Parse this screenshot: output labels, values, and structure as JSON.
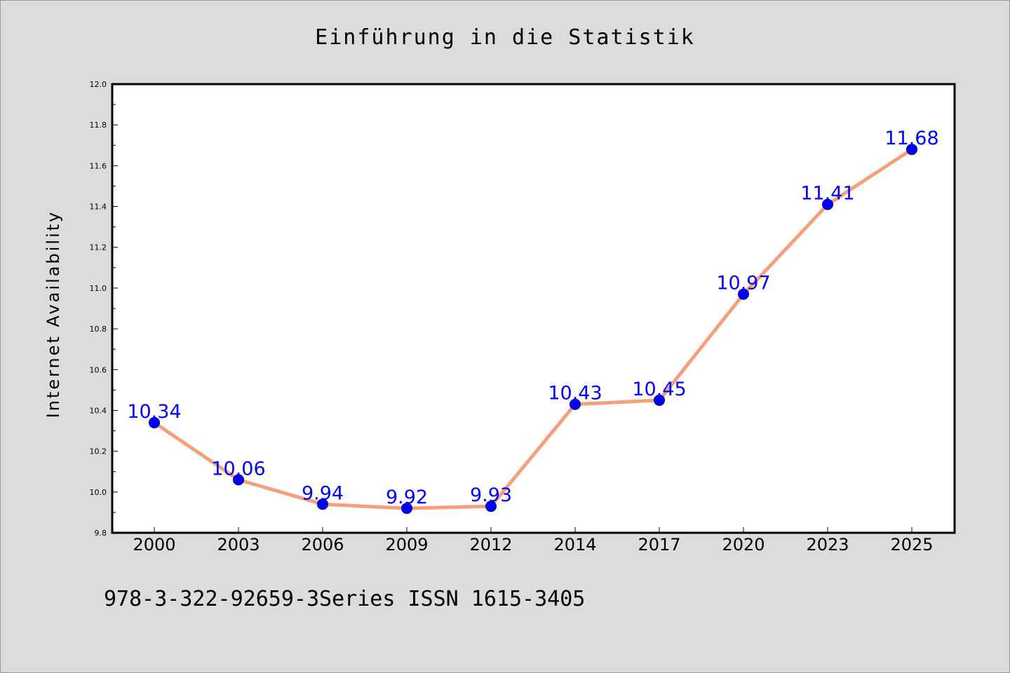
{
  "chart_data": {
    "type": "line",
    "title": "Einführung in die Statistik",
    "xlabel": "",
    "ylabel": "Internet Availability",
    "categories": [
      "2000",
      "2003",
      "2006",
      "2009",
      "2012",
      "2014",
      "2017",
      "2020",
      "2023",
      "2025"
    ],
    "series": [
      {
        "values": [
          10.34,
          10.06,
          9.94,
          9.92,
          9.93,
          10.43,
          10.45,
          10.97,
          11.41,
          11.68
        ],
        "data_labels": [
          "10.34",
          "10.06",
          "9.94",
          "9.92",
          "9.93",
          "10.43",
          "10.45",
          "10.97",
          "11.41",
          "11.68"
        ]
      }
    ],
    "ylim": [
      9.8,
      12.0
    ],
    "yticks": [
      "9.8",
      "10.0",
      "10.2",
      "10.4",
      "10.6",
      "10.8",
      "11.0",
      "11.2",
      "11.4",
      "11.6",
      "11.8",
      "12.0"
    ],
    "grid": false,
    "legend": "none"
  },
  "footer": {
    "text": "978-3-322-92659-3Series ISSN 1615-3405"
  },
  "colors": {
    "background": "#dcdcdc",
    "plot_background": "#ffffff",
    "line": "#f4a07c",
    "marker": "#0000ff",
    "marker_edge": "#00008b",
    "data_label": "#0000ff"
  }
}
